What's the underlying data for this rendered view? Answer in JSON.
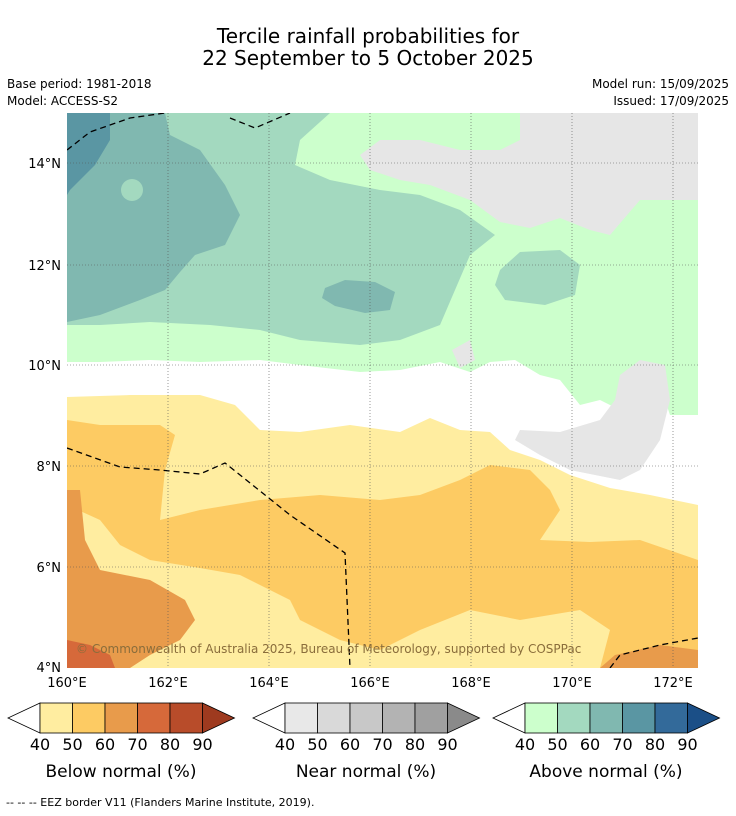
{
  "header": {
    "title_line1": "Tercile rainfall probabilities for",
    "title_line2": "22 September to 5 October 2025",
    "base_period": "Base period: 1981-2018",
    "model": "Model: ACCESS-S2",
    "model_run": "Model run: 15/09/2025",
    "issued": "Issued: 17/09/2025"
  },
  "map": {
    "lat_labels": [
      "14°N",
      "12°N",
      "10°N",
      "8°N",
      "6°N",
      "4°N"
    ],
    "lon_labels": [
      "160°E",
      "162°E",
      "164°E",
      "166°E",
      "168°E",
      "170°E",
      "172°E"
    ],
    "copyright": "© Commonwealth of Australia 2025, Bureau of Meteorology, supported by COSPPac"
  },
  "legend": {
    "below": {
      "label": "Below normal (%)",
      "ticks": [
        "40",
        "50",
        "60",
        "70",
        "80",
        "90"
      ],
      "colors": [
        "#ffeda0",
        "#fdcb63",
        "#e89b4b",
        "#d6693a",
        "#b84c2a",
        "#9e3a1f"
      ]
    },
    "near": {
      "label": "Near normal (%)",
      "ticks": [
        "40",
        "50",
        "60",
        "70",
        "80",
        "90"
      ],
      "colors": [
        "#e8e8e8",
        "#d9d9d9",
        "#c8c8c8",
        "#b3b3b3",
        "#a0a0a0",
        "#8a8a8a"
      ]
    },
    "above": {
      "label": "Above normal (%)",
      "ticks": [
        "40",
        "50",
        "60",
        "70",
        "80",
        "90"
      ],
      "colors": [
        "#ccffcc",
        "#a3d9bf",
        "#80b8b0",
        "#5a96a3",
        "#336a9a",
        "#1b4f87"
      ]
    }
  },
  "footnote": "--  --  -- EEZ border V11 (Flanders Marine Institute, 2019)."
}
